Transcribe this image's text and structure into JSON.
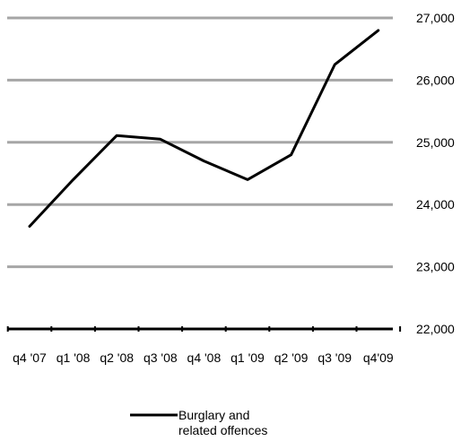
{
  "chart_data": {
    "type": "line",
    "title": "",
    "xlabel": "",
    "ylabel": "",
    "categories": [
      "q4 '07",
      "q1 '08",
      "q2 '08",
      "q3 '08",
      "q4 '08",
      "q1 '09",
      "q2 '09",
      "q3 '09",
      "q4'09"
    ],
    "series": [
      {
        "name": "Burglary and related offences",
        "legend_lines": [
          "Burglary and",
          "related offences"
        ],
        "values": [
          23650,
          24400,
          25110,
          25050,
          24700,
          24400,
          24800,
          26250,
          26800
        ]
      }
    ],
    "ylim": [
      22000,
      27000
    ],
    "yticks": [
      22000,
      23000,
      24000,
      25000,
      26000,
      27000
    ],
    "ytick_labels": [
      "22,000",
      "23,000",
      "24,000",
      "25,000",
      "26,000",
      "27,000"
    ],
    "y_axis_side": "right",
    "grid": true,
    "legend_position": "bottom-center",
    "colors": {
      "line": "#000000",
      "grid": "#a6a6a6",
      "axis": "#000000"
    }
  }
}
